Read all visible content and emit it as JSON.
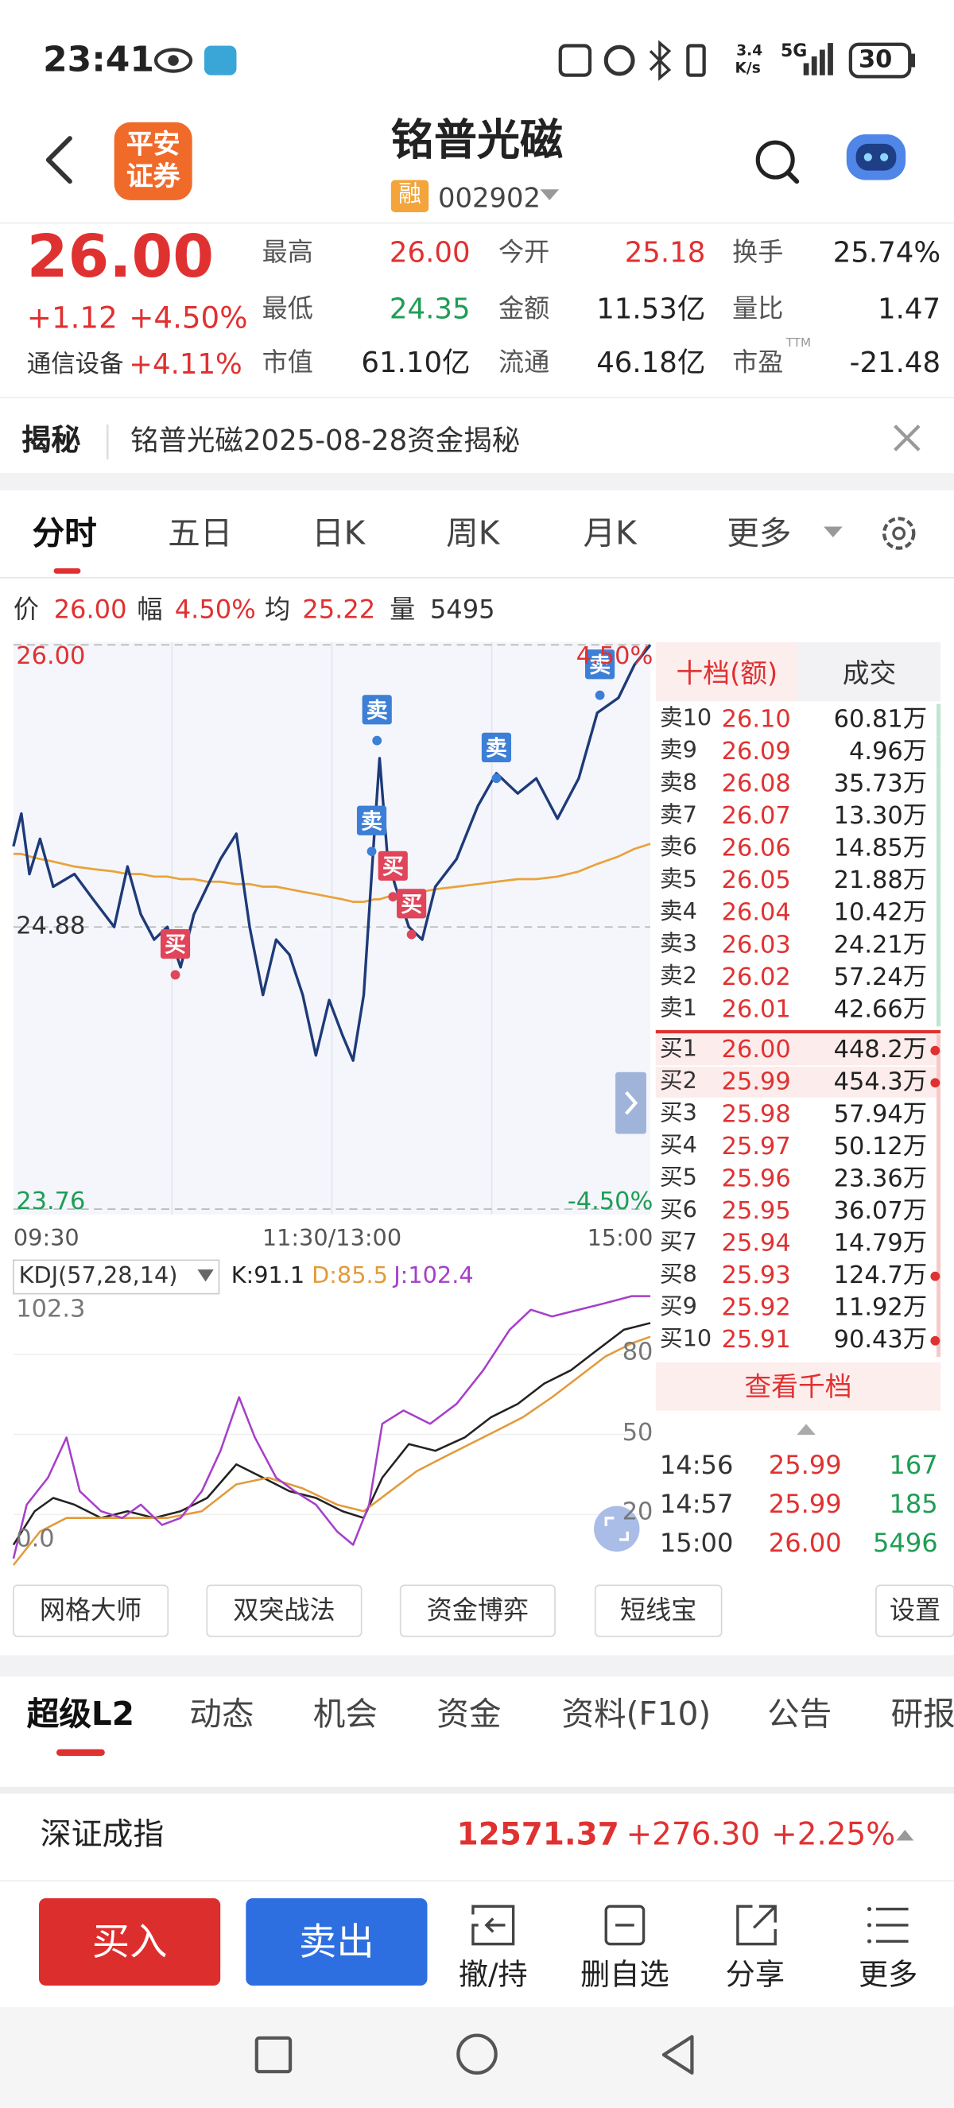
{
  "status_bar": {
    "time": "23:41",
    "speed_value": "3.4",
    "speed_unit": "K/s",
    "network": "5G",
    "battery": "30"
  },
  "header": {
    "logo": [
      "平安",
      "证券"
    ],
    "title": "铭普光磁",
    "tag": "融",
    "code": "002902"
  },
  "quote": {
    "price": "26.00",
    "change": "+1.12",
    "change_pct": "+4.50%",
    "sector": "通信设备",
    "sector_pct": "+4.11%",
    "stats": [
      {
        "label": "最高",
        "value": "26.00",
        "color": "#e03131"
      },
      {
        "label": "今开",
        "value": "25.18",
        "color": "#e03131"
      },
      {
        "label": "换手",
        "value": "25.74%",
        "color": "#222222"
      },
      {
        "label": "最低",
        "value": "24.35",
        "color": "#1f9d55"
      },
      {
        "label": "金额",
        "value": "11.53亿",
        "color": "#222222"
      },
      {
        "label": "量比",
        "value": "1.47",
        "color": "#222222"
      },
      {
        "label": "市值",
        "value": "61.10亿",
        "color": "#222222"
      },
      {
        "label": "流通",
        "value": "46.18亿",
        "color": "#222222"
      },
      {
        "label": "市盈",
        "value": "-21.48",
        "color": "#222222"
      }
    ],
    "pe_tag": "TTM"
  },
  "banner": {
    "tag": "揭秘",
    "text": "铭普光磁2025-08-28资金揭秘"
  },
  "tabs": [
    "分时",
    "五日",
    "日K",
    "周K",
    "月K",
    "更多"
  ],
  "info": [
    {
      "label": "价",
      "value": "26.00"
    },
    {
      "label": "幅",
      "value": "4.50%"
    },
    {
      "label": "均",
      "value": "25.22"
    },
    {
      "label": "量",
      "value": "5495"
    }
  ],
  "chart_data": [
    {
      "type": "line",
      "x": [
        0,
        3,
        6,
        10,
        15,
        23,
        30,
        38,
        43,
        48,
        53,
        58,
        63,
        68,
        73,
        78,
        84,
        89,
        94,
        99,
        104,
        109,
        114,
        119,
        124,
        128,
        132,
        136,
        138,
        141,
        144,
        149,
        154,
        159,
        167,
        175,
        182,
        190,
        197,
        205,
        213,
        220,
        228,
        234,
        240
      ],
      "xlim": [
        0,
        240
      ],
      "xticks": [
        {
          "value": 0,
          "label": "09:30"
        },
        {
          "value": 120,
          "label": "11:30/13:00"
        },
        {
          "value": 240,
          "label": "15:00"
        }
      ],
      "ylim": [
        23.76,
        26.0
      ],
      "yticks": [
        {
          "value": 26.0,
          "label": "26.00"
        },
        24.88,
        23.76
      ],
      "y2lim": [
        -4.5,
        4.5
      ],
      "y2ticks": [
        {
          "value": 4.5,
          "label": "4.50%"
        },
        {
          "value": -4.5,
          "label": "-4.50%"
        }
      ],
      "series": [
        {
          "color": "#1e3a78",
          "values": [
            25.2,
            25.33,
            25.09,
            25.23,
            25.04,
            25.09,
            24.99,
            24.88,
            25.12,
            24.93,
            24.83,
            24.88,
            24.72,
            24.93,
            25.04,
            25.15,
            25.25,
            24.88,
            24.61,
            24.83,
            24.77,
            24.61,
            24.37,
            24.59,
            24.45,
            24.35,
            24.61,
            25.25,
            25.55,
            25.15,
            25.04,
            24.88,
            24.83,
            25.04,
            25.15,
            25.36,
            25.49,
            25.41,
            25.47,
            25.31,
            25.47,
            25.73,
            25.79,
            25.92,
            26.0
          ]
        },
        {
          "color": "#e9a23b",
          "values": [
            25.17,
            25.17,
            25.16,
            25.15,
            25.14,
            25.12,
            25.11,
            25.1,
            25.09,
            25.09,
            25.08,
            25.08,
            25.07,
            25.07,
            25.06,
            25.06,
            25.05,
            25.05,
            25.04,
            25.04,
            25.03,
            25.02,
            25.01,
            25.0,
            24.99,
            24.98,
            24.98,
            24.99,
            24.99,
            25.0,
            25.0,
            25.01,
            25.02,
            25.03,
            25.04,
            25.05,
            25.06,
            25.07,
            25.07,
            25.08,
            25.1,
            25.13,
            25.16,
            25.19,
            25.21
          ]
        }
      ],
      "markers": [
        {
          "label": "买",
          "x": 61,
          "y": 24.69,
          "color": "#e0455a"
        },
        {
          "label": "卖",
          "x": 137,
          "y": 25.62,
          "color": "#3d7fd6"
        },
        {
          "label": "卖",
          "x": 135,
          "y": 25.18,
          "color": "#3d7fd6"
        },
        {
          "label": "买",
          "x": 143,
          "y": 25.0,
          "color": "#e0455a"
        },
        {
          "label": "买",
          "x": 150,
          "y": 24.85,
          "color": "#e0455a"
        },
        {
          "label": "卖",
          "x": 182,
          "y": 25.47,
          "color": "#3d7fd6"
        },
        {
          "label": "卖",
          "x": 221,
          "y": 25.8,
          "color": "#3d7fd6"
        }
      ]
    },
    {
      "type": "line",
      "title": "KDJ(57,28,14)",
      "readouts": [
        "K:91.1",
        "D:85.5",
        "J:102.4"
      ],
      "xlim": [
        0,
        240
      ],
      "ylim": [
        0,
        102.3
      ],
      "range_labels": [
        {
          "value": 102.3,
          "label": "102.3"
        },
        {
          "value": 0,
          "label": "0.0"
        }
      ],
      "yticks": [
        80,
        50,
        20
      ],
      "series": [
        {
          "name": "K",
          "color": "#222222",
          "x": [
            0,
            8,
            15,
            23,
            33,
            43,
            53,
            63,
            73,
            84,
            94,
            104,
            114,
            124,
            132,
            139,
            149,
            159,
            170,
            180,
            190,
            200,
            210,
            220,
            230,
            240
          ],
          "values": [
            8.6,
            21.2,
            26.2,
            23.7,
            18.7,
            21.2,
            18.7,
            21.2,
            26.2,
            38.8,
            33.8,
            28.7,
            26.2,
            21.2,
            18.7,
            33.8,
            46.4,
            43.9,
            48.9,
            56.5,
            61.5,
            69.1,
            74.1,
            81.7,
            89.3,
            91.8
          ]
        },
        {
          "name": "D",
          "color": "#e29a3a",
          "x": [
            0,
            10,
            20,
            33,
            46,
            58,
            71,
            84,
            96,
            109,
            122,
            132,
            142,
            152,
            162,
            172,
            182,
            192,
            203,
            213,
            223,
            233,
            240
          ],
          "values": [
            1.0,
            13.6,
            18.7,
            18.7,
            18.7,
            18.7,
            21.2,
            31.3,
            33.8,
            29.8,
            23.7,
            21.2,
            28.7,
            36.3,
            41.4,
            46.4,
            51.4,
            56.5,
            64.0,
            71.6,
            79.2,
            84.2,
            86.7
          ]
        },
        {
          "name": "J",
          "color": "#a63fc9",
          "x": [
            0,
            5,
            13,
            20,
            25,
            33,
            41,
            48,
            56,
            63,
            71,
            78,
            85,
            91,
            99,
            106,
            114,
            122,
            128,
            134,
            139,
            147,
            157,
            167,
            177,
            187,
            195,
            203,
            213,
            223,
            233,
            240
          ],
          "values": [
            3.5,
            23.7,
            33.8,
            48.9,
            28.7,
            21.2,
            18.7,
            23.7,
            16.1,
            18.7,
            28.7,
            43.9,
            64.0,
            48.9,
            33.8,
            28.7,
            23.7,
            13.6,
            8.6,
            23.7,
            54.0,
            59.0,
            54.0,
            61.5,
            74.1,
            89.3,
            96.8,
            94.3,
            96.8,
            99.3,
            101.9,
            101.9
          ]
        }
      ]
    }
  ],
  "order_book": {
    "tabs": [
      "十档(额)",
      "成交"
    ],
    "asks": [
      {
        "label": "卖10",
        "price": "26.10",
        "amount": "60.81万"
      },
      {
        "label": "卖9",
        "price": "26.09",
        "amount": "4.96万"
      },
      {
        "label": "卖8",
        "price": "26.08",
        "amount": "35.73万"
      },
      {
        "label": "卖7",
        "price": "26.07",
        "amount": "13.30万"
      },
      {
        "label": "卖6",
        "price": "26.06",
        "amount": "14.85万"
      },
      {
        "label": "卖5",
        "price": "26.05",
        "amount": "21.88万"
      },
      {
        "label": "卖4",
        "price": "26.04",
        "amount": "10.42万"
      },
      {
        "label": "卖3",
        "price": "26.03",
        "amount": "24.21万"
      },
      {
        "label": "卖2",
        "price": "26.02",
        "amount": "57.24万"
      },
      {
        "label": "卖1",
        "price": "26.01",
        "amount": "42.66万"
      }
    ],
    "bids": [
      {
        "label": "买1",
        "price": "26.00",
        "amount": "448.2万",
        "dot": true
      },
      {
        "label": "买2",
        "price": "25.99",
        "amount": "454.3万",
        "dot": true
      },
      {
        "label": "买3",
        "price": "25.98",
        "amount": "57.94万",
        "dot": false
      },
      {
        "label": "买4",
        "price": "25.97",
        "amount": "50.12万",
        "dot": false
      },
      {
        "label": "买5",
        "price": "25.96",
        "amount": "23.36万",
        "dot": false
      },
      {
        "label": "买6",
        "price": "25.95",
        "amount": "36.07万",
        "dot": false
      },
      {
        "label": "买7",
        "price": "25.94",
        "amount": "14.79万",
        "dot": false
      },
      {
        "label": "买8",
        "price": "25.93",
        "amount": "124.7万",
        "dot": true
      },
      {
        "label": "买9",
        "price": "25.92",
        "amount": "11.92万",
        "dot": false
      },
      {
        "label": "买10",
        "price": "25.91",
        "amount": "90.43万",
        "dot": true
      }
    ],
    "more": "查看千档"
  },
  "trades": [
    {
      "time": "14:56",
      "price": "25.99",
      "volume": "167"
    },
    {
      "time": "14:57",
      "price": "25.99",
      "volume": "185"
    },
    {
      "time": "15:00",
      "price": "26.00",
      "volume": "5496"
    }
  ],
  "tools": [
    "网格大师",
    "双突战法",
    "资金博弈",
    "短线宝",
    "设置"
  ],
  "bottom_tabs": [
    "超级L2",
    "动态",
    "机会",
    "资金",
    "资料(F10)",
    "公告",
    "研报"
  ],
  "index_bar": {
    "name": "深证成指",
    "value": "12571.37",
    "change": "+276.30",
    "change_pct": "+2.25%"
  },
  "actions": {
    "buy": "买入",
    "sell": "卖出",
    "items": [
      "撤/持",
      "删自选",
      "分享",
      "更多"
    ]
  }
}
